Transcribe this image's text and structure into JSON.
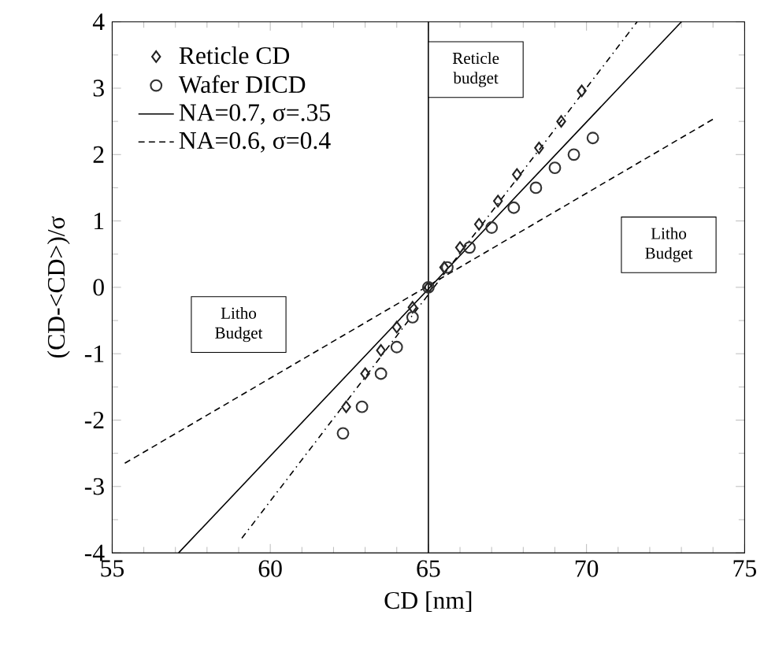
{
  "chart_data": {
    "type": "scatter",
    "xlabel": "CD [nm]",
    "ylabel": "(CD-<CD>)/σ",
    "xlim": [
      55,
      75
    ],
    "ylim": [
      -4,
      4
    ],
    "xticks": [
      55,
      60,
      65,
      70,
      75
    ],
    "yticks": [
      -4,
      -3,
      -2,
      -1,
      0,
      1,
      2,
      3,
      4
    ],
    "grid": false,
    "legend": "top left",
    "series": [
      {
        "name": "Reticle CD",
        "marker": "diamond",
        "color": "#222222",
        "x": [
          62.4,
          63,
          63.5,
          64,
          64.5,
          65,
          65.5,
          66,
          66.6,
          67.2,
          67.8,
          68.5,
          69.2,
          69.85
        ],
        "values": [
          -1.8,
          -1.3,
          -0.95,
          -0.6,
          -0.3,
          0,
          0.3,
          0.6,
          0.95,
          1.3,
          1.7,
          2.1,
          2.5,
          2.96
        ]
      },
      {
        "name": "Wafer DICD",
        "marker": "circle",
        "color": "#333333",
        "x": [
          62.3,
          62.9,
          63.5,
          64,
          64.5,
          65,
          65.6,
          66.3,
          67,
          67.7,
          68.4,
          69,
          69.6,
          70.2
        ],
        "values": [
          -2.2,
          -1.8,
          -1.3,
          -0.9,
          -0.45,
          0,
          0.3,
          0.6,
          0.9,
          1.2,
          1.5,
          1.8,
          2.0,
          2.25
        ]
      },
      {
        "name": "NA=0.7, σ=.35",
        "type": "line",
        "line_style": "solid",
        "color": "#000000",
        "x": [
          57.1,
          73.0
        ],
        "values": [
          -4,
          4
        ]
      },
      {
        "name": "NA=0.6, σ=0.4",
        "type": "line",
        "line_style": "dashed",
        "color": "#000000",
        "x": [
          55.4,
          74.1
        ],
        "values": [
          -2.65,
          2.56
        ]
      },
      {
        "type": "line",
        "line_style": "dashed",
        "color": "#000000",
        "x": [
          59.1,
          71.6
        ],
        "values": [
          -3.78,
          4
        ]
      }
    ],
    "ref_lines": [
      {
        "axis": "x",
        "value": 65,
        "color": "#000000"
      }
    ],
    "annotations": [
      "Reticle budget",
      "Litho Budget",
      "Litho Budget"
    ]
  }
}
